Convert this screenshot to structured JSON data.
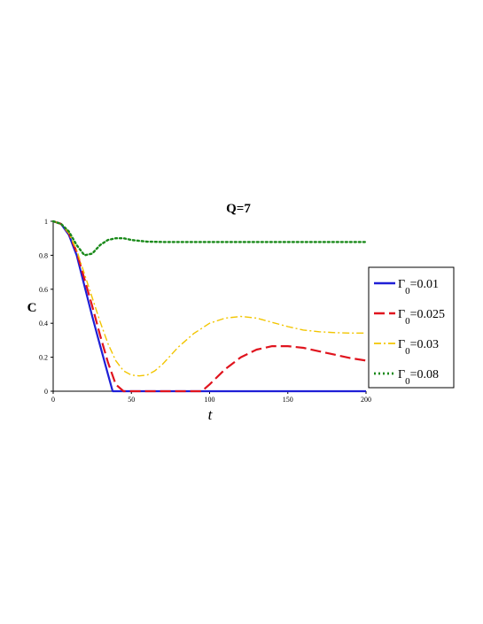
{
  "chart_data": {
    "type": "line",
    "title": "Q=7",
    "xlabel": "t",
    "ylabel": "C",
    "xlim": [
      0,
      200
    ],
    "ylim": [
      0,
      1
    ],
    "xticks": [
      "0",
      "50",
      "100",
      "150",
      "200"
    ],
    "yticks": [
      "0",
      "0.2",
      "0.4",
      "0.6",
      "0.8",
      "1"
    ],
    "grid": false,
    "legend_position": "right",
    "series": [
      {
        "name": "Γ0=0.01",
        "color": "#1f1fd6",
        "style": "solid",
        "x": [
          0,
          5,
          10,
          15,
          20,
          25,
          30,
          35,
          38,
          40,
          50,
          100,
          150,
          200
        ],
        "y": [
          1.0,
          0.985,
          0.92,
          0.8,
          0.62,
          0.44,
          0.27,
          0.1,
          0.0,
          0.0,
          0.0,
          0.0,
          0.0,
          0.0
        ]
      },
      {
        "name": "Γ0=0.025",
        "color": "#e0141e",
        "style": "dashed",
        "x": [
          0,
          5,
          10,
          15,
          20,
          25,
          30,
          35,
          40,
          45,
          50,
          60,
          70,
          80,
          90,
          95,
          100,
          110,
          120,
          130,
          140,
          150,
          160,
          170,
          180,
          190,
          200
        ],
        "y": [
          1.0,
          0.985,
          0.93,
          0.82,
          0.66,
          0.5,
          0.33,
          0.17,
          0.04,
          0.0,
          0.0,
          0.0,
          0.0,
          0.0,
          0.0,
          0.0,
          0.04,
          0.13,
          0.2,
          0.245,
          0.265,
          0.265,
          0.255,
          0.235,
          0.215,
          0.195,
          0.18
        ]
      },
      {
        "name": "Γ0=0.03",
        "color": "#f2c500",
        "style": "dashdot",
        "x": [
          0,
          5,
          10,
          15,
          20,
          25,
          30,
          35,
          40,
          45,
          50,
          55,
          60,
          65,
          70,
          80,
          90,
          100,
          110,
          120,
          130,
          140,
          150,
          160,
          170,
          180,
          190,
          200
        ],
        "y": [
          1.0,
          0.985,
          0.93,
          0.83,
          0.69,
          0.55,
          0.41,
          0.28,
          0.18,
          0.12,
          0.095,
          0.09,
          0.095,
          0.12,
          0.16,
          0.26,
          0.34,
          0.4,
          0.43,
          0.44,
          0.43,
          0.405,
          0.38,
          0.36,
          0.35,
          0.345,
          0.342,
          0.342
        ]
      },
      {
        "name": "Γ0=0.08",
        "color": "#1a8a1a",
        "style": "dotted",
        "x": [
          0,
          5,
          10,
          15,
          20,
          25,
          30,
          35,
          40,
          45,
          50,
          55,
          60,
          70,
          80,
          100,
          120,
          140,
          160,
          180,
          200
        ],
        "y": [
          1.0,
          0.985,
          0.94,
          0.86,
          0.8,
          0.81,
          0.86,
          0.89,
          0.9,
          0.9,
          0.89,
          0.885,
          0.88,
          0.878,
          0.878,
          0.878,
          0.878,
          0.878,
          0.878,
          0.878,
          0.878
        ]
      }
    ]
  }
}
